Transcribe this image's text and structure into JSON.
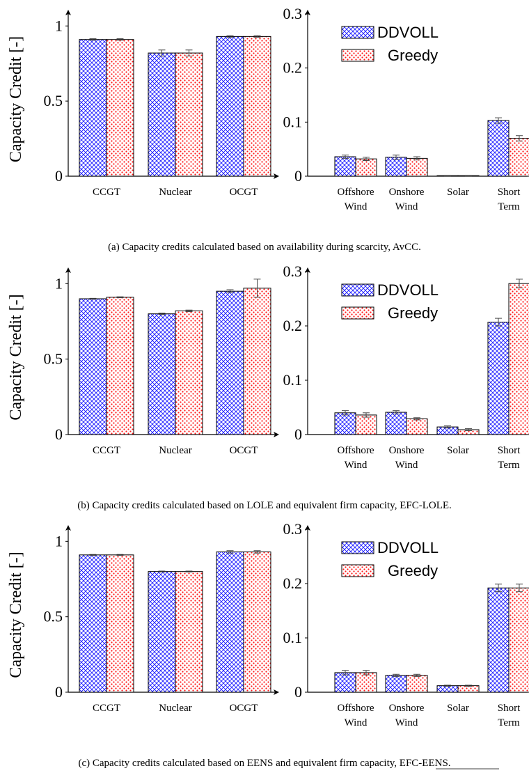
{
  "chart_data": [
    {
      "type": "bar",
      "panel": "a-left",
      "categories": [
        "CCGT",
        "Nuclear",
        "OCGT"
      ],
      "series": [
        {
          "name": "DDVOLL",
          "values": [
            0.91,
            0.82,
            0.93
          ],
          "errors": [
            0.005,
            0.02,
            0.005
          ]
        },
        {
          "name": "Greedy",
          "values": [
            0.91,
            0.82,
            0.93
          ],
          "errors": [
            0.005,
            0.02,
            0.005
          ]
        }
      ],
      "ylabel": "Capacity Credit [-]",
      "ylim": [
        0,
        1.08
      ],
      "yticks": [
        "0",
        "0.5",
        "1"
      ]
    },
    {
      "type": "bar",
      "panel": "a-right",
      "categories": [
        "Offshore\nWind",
        "Onshore\nWind",
        "Solar",
        "Short\nTerm"
      ],
      "series": [
        {
          "name": "DDVOLL",
          "values": [
            0.036,
            0.035,
            0.001,
            0.103
          ],
          "errors": [
            0.003,
            0.004,
            0.0005,
            0.005
          ]
        },
        {
          "name": "Greedy",
          "values": [
            0.032,
            0.033,
            0.001,
            0.07
          ],
          "errors": [
            0.003,
            0.003,
            0.0005,
            0.005
          ]
        }
      ],
      "ylim": [
        0,
        0.3
      ],
      "yticks": [
        "0",
        "0.1",
        "0.2",
        "0.3"
      ],
      "legend": "top-left"
    },
    {
      "type": "bar",
      "panel": "b-left",
      "categories": [
        "CCGT",
        "Nuclear",
        "OCGT"
      ],
      "series": [
        {
          "name": "DDVOLL",
          "values": [
            0.9,
            0.8,
            0.95
          ],
          "errors": [
            0.003,
            0.005,
            0.01
          ]
        },
        {
          "name": "Greedy",
          "values": [
            0.91,
            0.82,
            0.97
          ],
          "errors": [
            0.003,
            0.005,
            0.06
          ]
        }
      ],
      "ylabel": "Capacity Credit [-]",
      "ylim": [
        0,
        1.08
      ],
      "yticks": [
        "0",
        "0.5",
        "1"
      ]
    },
    {
      "type": "bar",
      "panel": "b-right",
      "categories": [
        "Offshore\nWind",
        "Onshore\nWind",
        "Solar",
        "Short\nTerm"
      ],
      "series": [
        {
          "name": "DDVOLL",
          "values": [
            0.04,
            0.041,
            0.014,
            0.207
          ],
          "errors": [
            0.004,
            0.003,
            0.002,
            0.007
          ]
        },
        {
          "name": "Greedy",
          "values": [
            0.036,
            0.029,
            0.009,
            0.278
          ],
          "errors": [
            0.004,
            0.002,
            0.002,
            0.008
          ]
        }
      ],
      "ylim": [
        0,
        0.3
      ],
      "yticks": [
        "0",
        "0.1",
        "0.2",
        "0.3"
      ],
      "legend": "top-left"
    },
    {
      "type": "bar",
      "panel": "c-left",
      "categories": [
        "CCGT",
        "Nuclear",
        "OCGT"
      ],
      "series": [
        {
          "name": "DDVOLL",
          "values": [
            0.91,
            0.8,
            0.93
          ],
          "errors": [
            0.003,
            0.003,
            0.008
          ]
        },
        {
          "name": "Greedy",
          "values": [
            0.91,
            0.8,
            0.93
          ],
          "errors": [
            0.003,
            0.003,
            0.008
          ]
        }
      ],
      "ylabel": "Capacity Credit [-]",
      "ylim": [
        0,
        1.08
      ],
      "yticks": [
        "0",
        "0.5",
        "1"
      ]
    },
    {
      "type": "bar",
      "panel": "c-right",
      "categories": [
        "Offshore\nWind",
        "Onshore\nWind",
        "Solar",
        "Short\nTerm"
      ],
      "series": [
        {
          "name": "DDVOLL",
          "values": [
            0.036,
            0.031,
            0.012,
            0.192
          ],
          "errors": [
            0.004,
            0.002,
            0.001,
            0.007
          ]
        },
        {
          "name": "Greedy",
          "values": [
            0.036,
            0.031,
            0.012,
            0.192
          ],
          "errors": [
            0.004,
            0.002,
            0.001,
            0.007
          ]
        }
      ],
      "ylim": [
        0,
        0.3
      ],
      "yticks": [
        "0",
        "0.1",
        "0.2",
        "0.3"
      ],
      "legend": "top-left"
    }
  ],
  "legend_labels": [
    "DDVOLL",
    "Greedy"
  ],
  "colors": {
    "ddvoll": "#1a1aff",
    "greedy": "#ff1a1a",
    "axis": "#000000"
  },
  "captions": [
    "(a) Capacity credits calculated based on availability during scarcity, AvCC.",
    "(b) Capacity credits calculated based on LOLE and equivalent firm capacity, EFC-LOLE.",
    "(c) Capacity credits calculated based on EENS and equivalent firm capacity, EFC-EENS."
  ]
}
